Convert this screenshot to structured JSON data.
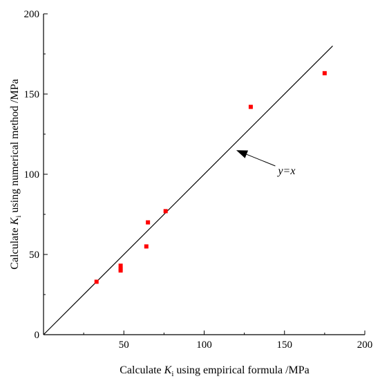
{
  "chart_data": {
    "type": "scatter",
    "xlabel": {
      "pre": "Calculate ",
      "var": "K",
      "sub": "i",
      "post": " using empirical formula /MPa"
    },
    "ylabel": {
      "pre": "Calculate ",
      "var": "K",
      "sub": "i",
      "post": " using numerical method /MPa"
    },
    "xlim": [
      0,
      200
    ],
    "ylim": [
      0,
      200
    ],
    "x_ticks": [
      50,
      100,
      150,
      200
    ],
    "y_ticks": [
      0,
      50,
      100,
      150,
      200
    ],
    "grid": false,
    "marker_color": "#ff0000",
    "line_color": "#000000",
    "points": [
      {
        "x": 33,
        "y": 33
      },
      {
        "x": 48,
        "y": 40
      },
      {
        "x": 48,
        "y": 41
      },
      {
        "x": 48,
        "y": 43
      },
      {
        "x": 64,
        "y": 55
      },
      {
        "x": 65,
        "y": 70
      },
      {
        "x": 76,
        "y": 77
      },
      {
        "x": 129,
        "y": 142
      },
      {
        "x": 175,
        "y": 163
      }
    ],
    "reference_line": {
      "x": [
        0,
        180
      ],
      "y": [
        0,
        180
      ],
      "label": "y=x"
    },
    "annotation": {
      "text": "y=x",
      "arrow_to": {
        "x": 120,
        "y": 115
      },
      "text_at": {
        "x": 146,
        "y": 100
      }
    }
  }
}
